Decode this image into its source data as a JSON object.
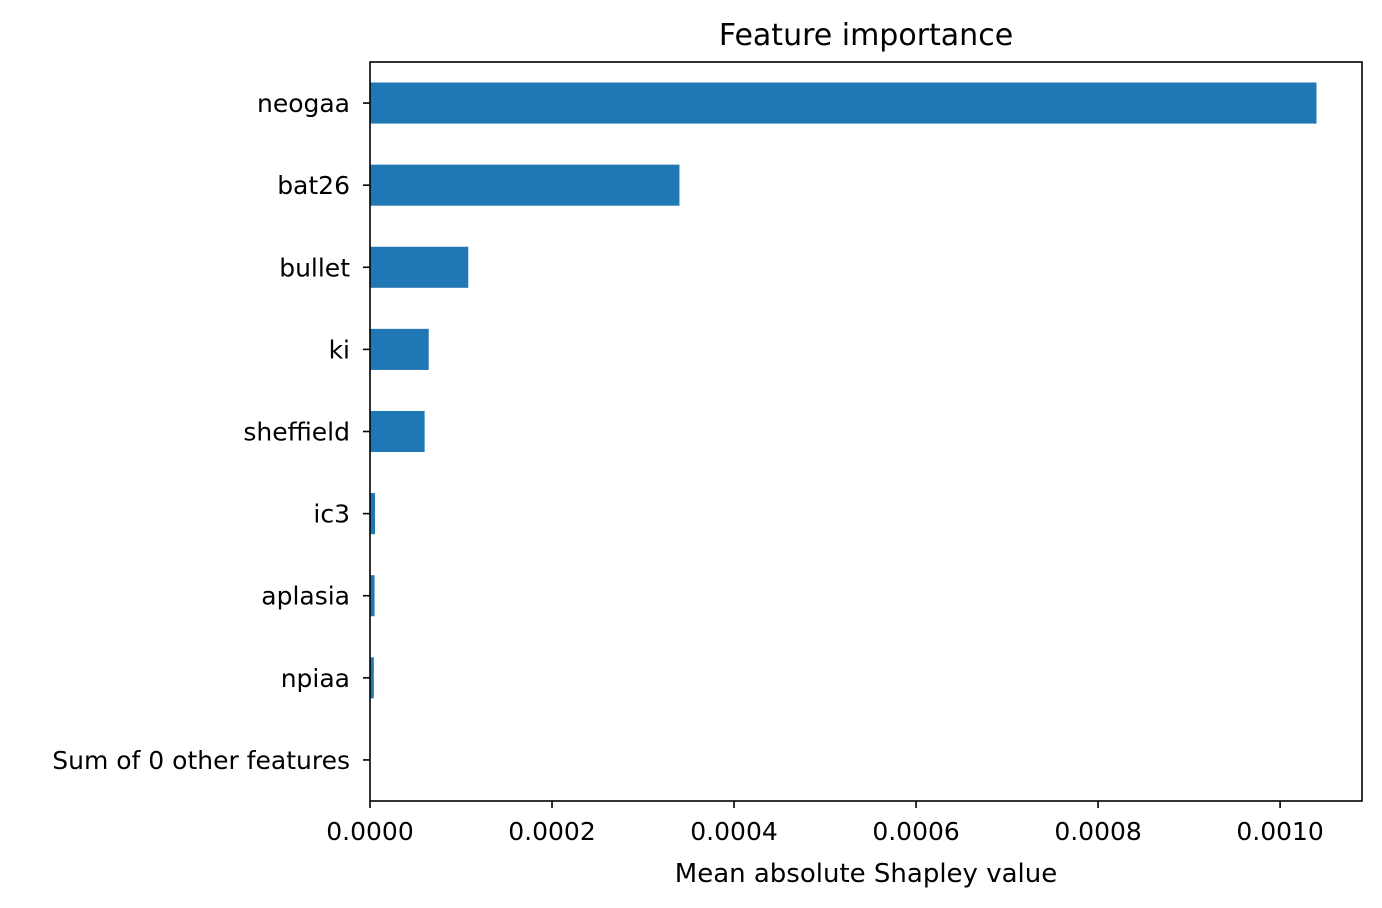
{
  "chart_data": {
    "type": "bar",
    "orientation": "horizontal",
    "title": "Feature importance",
    "xlabel": "Mean absolute Shapley value",
    "ylabel": "",
    "xlim": [
      0,
      0.00109
    ],
    "xticks": [
      0.0,
      0.0002,
      0.0004,
      0.0006,
      0.0008,
      0.001
    ],
    "xtick_labels": [
      "0.0000",
      "0.0002",
      "0.0004",
      "0.0006",
      "0.0008",
      "0.0010"
    ],
    "categories": [
      "neogaa",
      "bat26",
      "bullet",
      "ki",
      "sheffield",
      "ic3",
      "aplasia",
      "npiaa",
      "Sum of 0 other features"
    ],
    "values": [
      0.00104,
      0.00034,
      0.000108,
      6.45e-05,
      6e-05,
      5.5e-06,
      5e-06,
      4.2e-06,
      0
    ],
    "bar_color": "#1f77b4",
    "grid": false,
    "legend": false
  }
}
